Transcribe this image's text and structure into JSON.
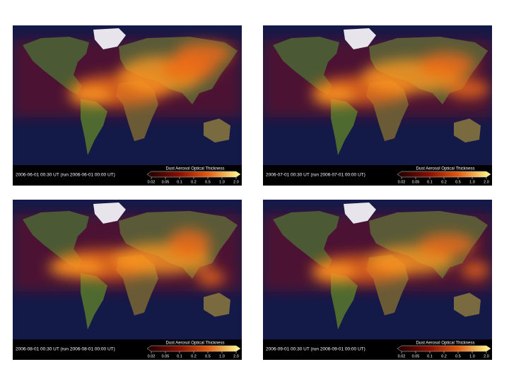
{
  "panels": [
    {
      "timestamp": "2006-06-01 00:30 UT (run 2006-06-01 00:00 UT)"
    },
    {
      "timestamp": "2006-07-01 00:30 UT (run 2006-07-01 00:00 UT)"
    },
    {
      "timestamp": "2006-08-01 00:30 UT (run 2006-08-01 00:00 UT)"
    },
    {
      "timestamp": "2006-09-01 00:30 UT (run 2006-09-01 00:00 UT)"
    }
  ],
  "colorbar": {
    "title": "Dust Aerosol Optical Thickness",
    "ticks": [
      "0.02",
      "0.05",
      "0.1",
      "0.2",
      "0.5",
      "1.0",
      "2.0"
    ]
  }
}
